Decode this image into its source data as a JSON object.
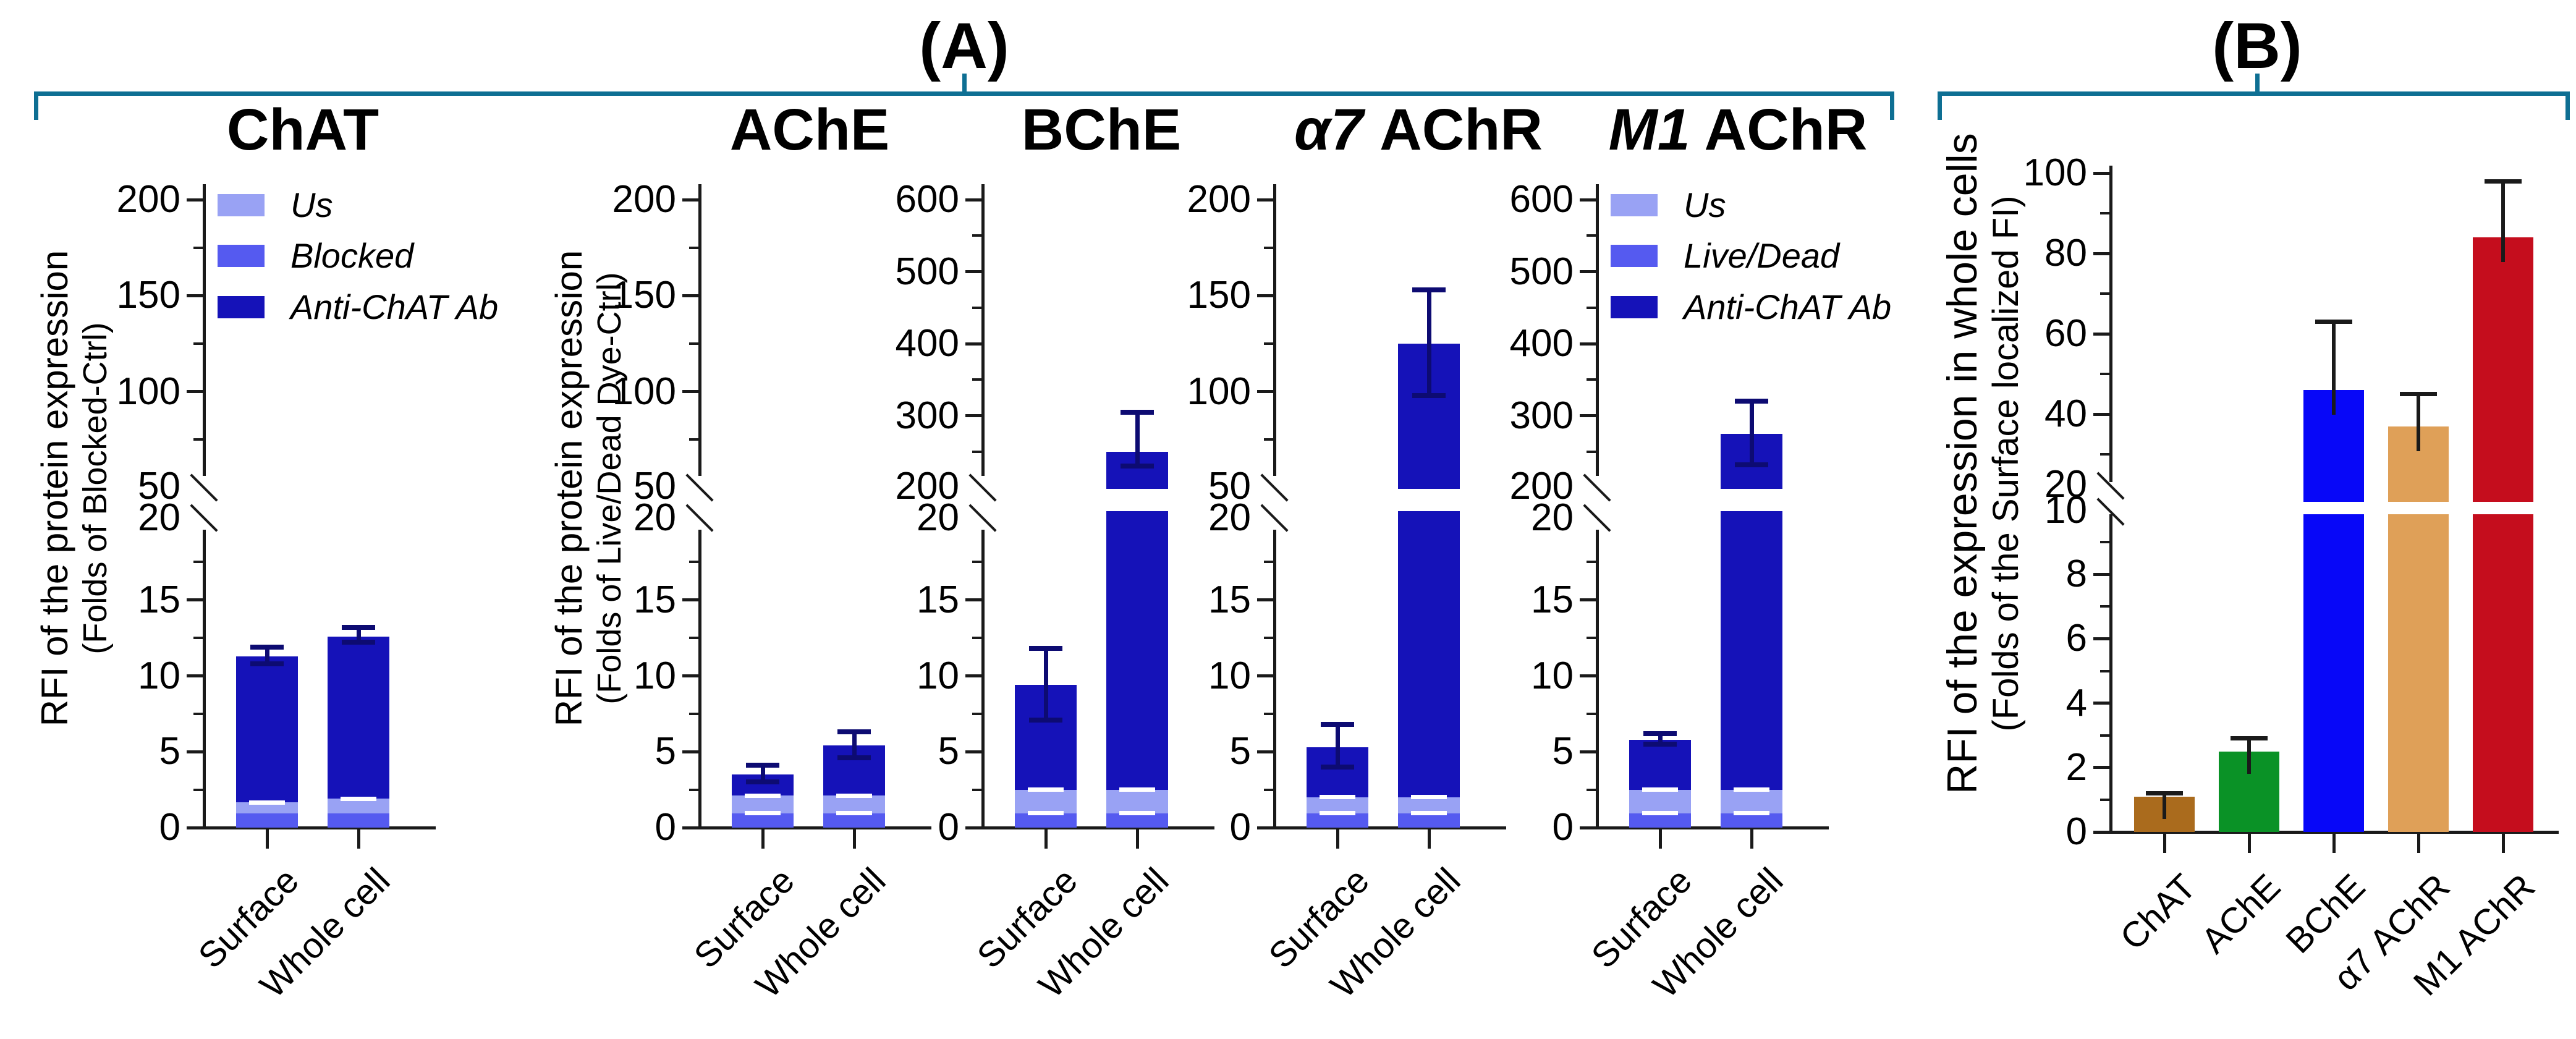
{
  "figure": {
    "panel_a_label": "(A)",
    "panel_b_label": "(B)",
    "colors": {
      "bracket": "#0e6f93",
      "axis": "#1a1a1a",
      "us": "#99a2f4",
      "blocked": "#555af0",
      "anti": "#1512b8",
      "err_a": "#0d0b72",
      "err_b": "#1a1a1a",
      "dash": "#ffffff",
      "b_bars": [
        "#aa6b1d",
        "#0a9226",
        "#0707f8",
        "#dfa058",
        "#c50d1d"
      ]
    }
  },
  "chart_data": [
    {
      "type": "bar",
      "panel": "A",
      "title": "ChAT",
      "title_italic": "",
      "title_plain": "ChAT",
      "ylabel_line1": "RFI of the protein expression",
      "ylabel_line2": "(Folds of Blocked-Ctrl)",
      "y_lower_ticks": [
        0,
        5,
        10,
        15,
        20
      ],
      "y_upper_ticks": [
        50,
        100,
        150,
        200
      ],
      "legend": [
        "Us",
        "Blocked",
        "Anti-ChAT Ab"
      ],
      "categories": [
        "Surface",
        "Whole cell"
      ],
      "bars": [
        {
          "category": "Surface",
          "blocked_top": 0.95,
          "us_top": 1.65,
          "total": 11.3,
          "err_lo": 10.8,
          "err_hi": 11.9,
          "dashes": [
            1.65
          ],
          "crosses_break": false,
          "upper_value": null
        },
        {
          "category": "Whole cell",
          "blocked_top": 0.95,
          "us_top": 1.9,
          "total": 12.6,
          "err_lo": 12.2,
          "err_hi": 13.2,
          "dashes": [
            1.9
          ],
          "crosses_break": false,
          "upper_value": null
        }
      ]
    },
    {
      "type": "bar",
      "panel": "A",
      "title": "AChE",
      "title_italic": "",
      "title_plain": "AChE",
      "ylabel_line1": "RFI of the protein expression",
      "ylabel_line2": "(Folds of Live/Dead Dye-Ctrl)",
      "y_lower_ticks": [
        0,
        5,
        10,
        15,
        20
      ],
      "y_upper_ticks": [
        50,
        100,
        150,
        200
      ],
      "legend": null,
      "categories": [
        "Surface",
        "Whole cell"
      ],
      "bars": [
        {
          "category": "Surface",
          "blocked_top": 0.95,
          "us_top": 2.1,
          "total": 3.5,
          "err_lo": 3.0,
          "err_hi": 4.1,
          "dashes": [
            0.95,
            2.1
          ],
          "crosses_break": false,
          "upper_value": null
        },
        {
          "category": "Whole cell",
          "blocked_top": 0.95,
          "us_top": 2.1,
          "total": 5.4,
          "err_lo": 4.6,
          "err_hi": 6.3,
          "dashes": [
            0.95,
            2.1
          ],
          "crosses_break": false,
          "upper_value": null
        }
      ]
    },
    {
      "type": "bar",
      "panel": "A",
      "title": "BChE",
      "title_italic": "",
      "title_plain": "BChE",
      "ylabel_line1": null,
      "ylabel_line2": null,
      "y_lower_ticks": [
        0,
        5,
        10,
        15,
        20
      ],
      "y_upper_ticks": [
        200,
        300,
        400,
        500,
        600
      ],
      "legend": null,
      "categories": [
        "Surface",
        "Whole cell"
      ],
      "bars": [
        {
          "category": "Surface",
          "blocked_top": 0.95,
          "us_top": 2.5,
          "total": 9.4,
          "err_lo": 7.1,
          "err_hi": 11.8,
          "dashes": [
            0.95,
            2.5
          ],
          "crosses_break": false,
          "upper_value": null
        },
        {
          "category": "Whole cell",
          "blocked_top": 0.95,
          "us_top": 2.5,
          "total": 250,
          "err_lo": 230,
          "err_hi": 305,
          "dashes": [
            0.95,
            2.5
          ],
          "crosses_break": true,
          "upper_value": 250
        }
      ]
    },
    {
      "type": "bar",
      "panel": "A",
      "title": "α7 AChR",
      "title_italic": "α7",
      "title_plain": " AChR",
      "ylabel_line1": null,
      "ylabel_line2": null,
      "y_lower_ticks": [
        0,
        5,
        10,
        15,
        20
      ],
      "y_upper_ticks": [
        50,
        100,
        150,
        200
      ],
      "legend": null,
      "categories": [
        "Surface",
        "Whole cell"
      ],
      "bars": [
        {
          "category": "Surface",
          "blocked_top": 0.95,
          "us_top": 2.0,
          "total": 5.3,
          "err_lo": 4.0,
          "err_hi": 6.8,
          "dashes": [
            0.95,
            2.0
          ],
          "crosses_break": false,
          "upper_value": null
        },
        {
          "category": "Whole cell",
          "blocked_top": 0.95,
          "us_top": 2.0,
          "total": 125,
          "err_lo": 98,
          "err_hi": 153,
          "dashes": [
            0.95,
            2.0
          ],
          "crosses_break": true,
          "upper_value": 125
        }
      ]
    },
    {
      "type": "bar",
      "panel": "A",
      "title": "M1 AChR",
      "title_italic": "M1",
      "title_plain": " AChR",
      "ylabel_line1": null,
      "ylabel_line2": null,
      "y_lower_ticks": [
        0,
        5,
        10,
        15,
        20
      ],
      "y_upper_ticks": [
        200,
        300,
        400,
        500,
        600
      ],
      "legend": [
        "Us",
        "Live/Dead",
        "Anti-ChAT Ab"
      ],
      "categories": [
        "Surface",
        "Whole cell"
      ],
      "bars": [
        {
          "category": "Surface",
          "blocked_top": 0.95,
          "us_top": 2.5,
          "total": 5.8,
          "err_lo": 5.5,
          "err_hi": 6.2,
          "dashes": [
            0.95,
            2.5
          ],
          "crosses_break": false,
          "upper_value": null
        },
        {
          "category": "Whole cell",
          "blocked_top": 0.95,
          "us_top": 2.5,
          "total": 275,
          "err_lo": 232,
          "err_hi": 320,
          "dashes": [
            0.95,
            2.5
          ],
          "crosses_break": true,
          "upper_value": 275
        }
      ]
    },
    {
      "type": "bar",
      "panel": "B",
      "title": "",
      "ylabel_line1": "RFI of the expression in whole cells",
      "ylabel_line2": "(Folds of the Surface localized FI)",
      "y_lower_ticks": [
        0,
        2,
        4,
        6,
        8,
        10
      ],
      "y_upper_ticks": [
        20,
        40,
        60,
        80,
        100
      ],
      "categories": [
        "ChAT",
        "AChE",
        "BChE",
        "α7 AChR",
        "M1 AChR"
      ],
      "values": [
        1.1,
        2.5,
        46,
        37,
        84
      ],
      "err_hi": [
        1.2,
        2.9,
        63,
        45,
        98
      ],
      "crosses_break": [
        false,
        false,
        true,
        true,
        true
      ]
    }
  ]
}
